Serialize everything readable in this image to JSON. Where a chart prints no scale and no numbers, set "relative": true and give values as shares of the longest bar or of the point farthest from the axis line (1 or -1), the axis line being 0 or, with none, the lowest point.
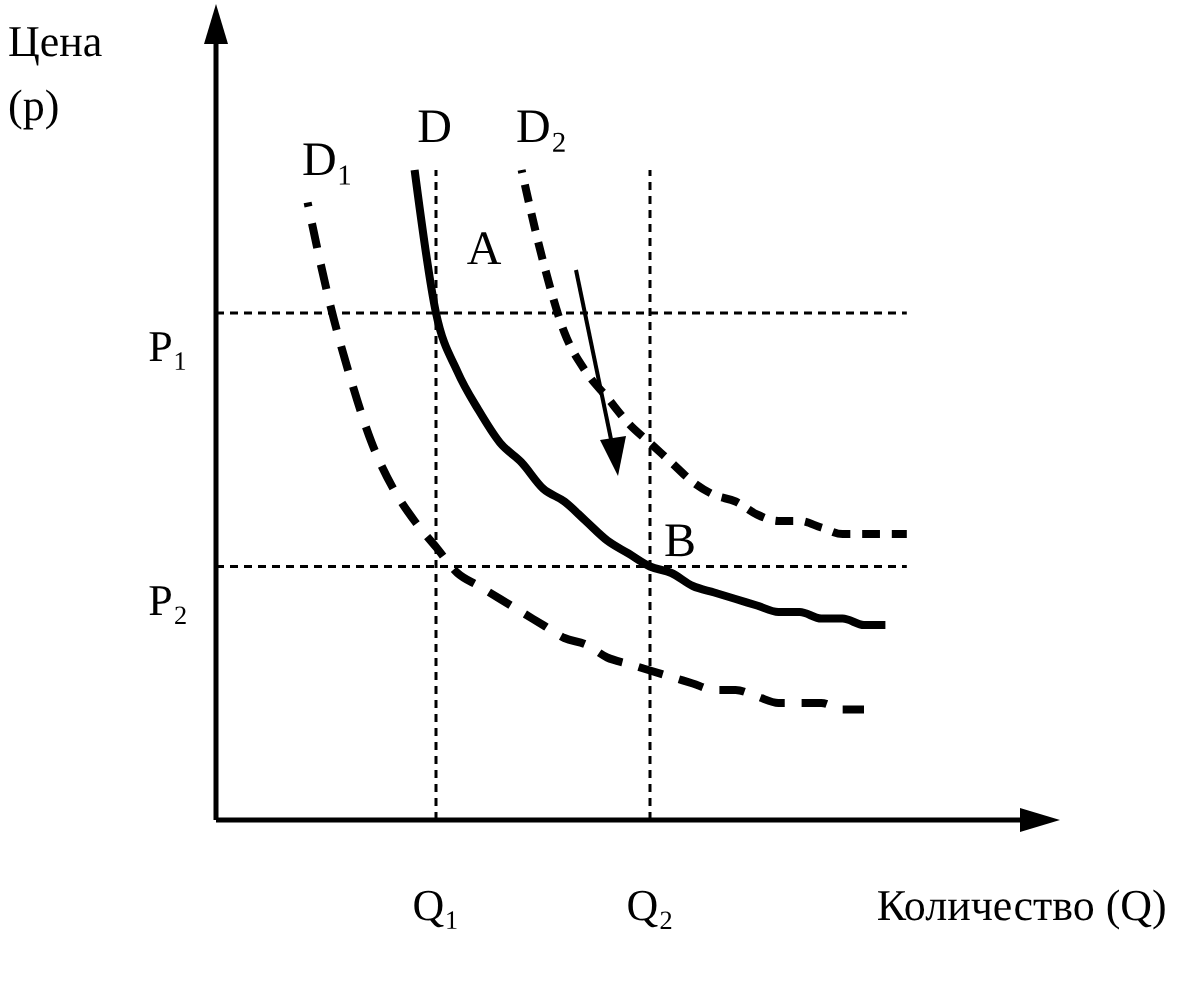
{
  "chart_data": {
    "type": "line",
    "relative": true,
    "ylabel": "Цена (p)",
    "xlabel": "Количество (Q)",
    "categories": [
      null,
      null,
      null,
      null,
      null,
      null,
      "Q₁",
      null,
      null,
      null,
      null,
      null,
      null,
      null,
      null,
      null,
      "Q₂",
      null,
      null,
      null,
      null,
      null,
      null,
      null,
      null,
      null,
      null,
      null,
      null
    ],
    "series": [
      {
        "name": "D₁",
        "color": "#000000",
        "line_style": "dashed",
        "values": [
          0.95,
          0.8,
          0.68,
          0.58,
          0.51,
          0.46,
          0.42,
          0.38,
          0.36,
          0.34,
          0.32,
          0.3,
          0.28,
          0.27,
          0.25,
          0.24,
          0.23,
          0.22,
          0.21,
          0.2,
          0.2,
          0.19,
          0.18,
          0.18,
          0.18,
          0.17,
          0.17,
          null,
          null
        ]
      },
      {
        "name": "D",
        "color": "#000000",
        "line_style": "solid",
        "values": [
          null,
          null,
          null,
          null,
          null,
          1.0,
          0.78,
          0.69,
          0.63,
          0.58,
          0.55,
          0.51,
          0.49,
          0.46,
          0.43,
          0.41,
          0.39,
          0.38,
          0.36,
          0.35,
          0.34,
          0.33,
          0.32,
          0.32,
          0.31,
          0.31,
          0.3,
          0.3,
          null
        ]
      },
      {
        "name": "D₂",
        "color": "#000000",
        "line_style": "dashed",
        "values": [
          null,
          null,
          null,
          null,
          null,
          null,
          null,
          null,
          null,
          null,
          1.0,
          0.86,
          0.75,
          0.69,
          0.65,
          0.61,
          0.58,
          0.55,
          0.52,
          0.5,
          0.49,
          0.47,
          0.46,
          0.46,
          0.45,
          0.44,
          0.44,
          0.44,
          0.44
        ]
      }
    ],
    "ref_lines": [
      {
        "axis": "y",
        "value": 0.78,
        "label": "P₁",
        "line_style": "dashed"
      },
      {
        "axis": "y",
        "value": 0.39,
        "label": "P₂",
        "line_style": "dashed"
      },
      {
        "axis": "x",
        "value": "Q₁",
        "line_style": "dashed"
      },
      {
        "axis": "x",
        "value": "Q₂",
        "line_style": "dashed"
      }
    ],
    "annotations": [
      "A",
      "B"
    ]
  }
}
